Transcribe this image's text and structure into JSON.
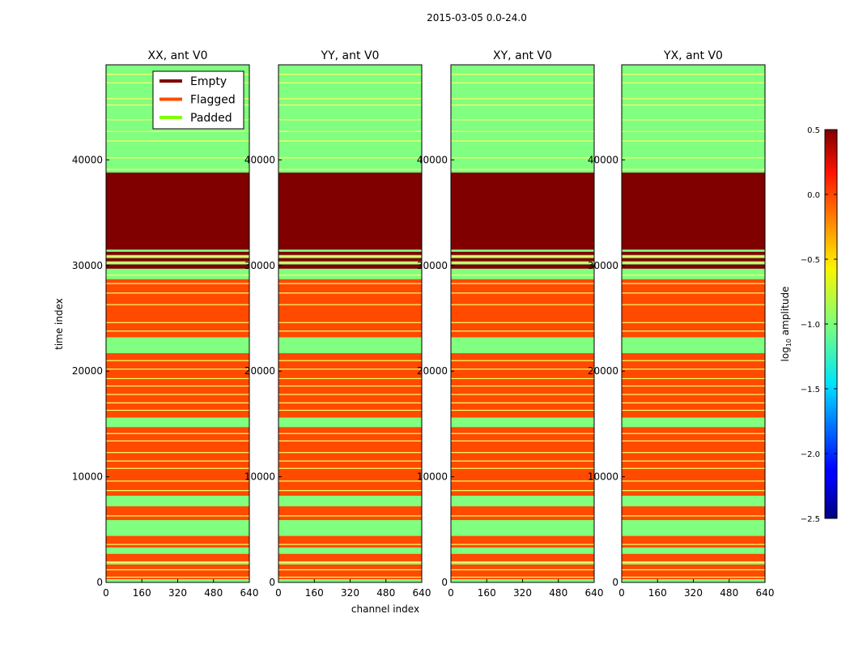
{
  "figure": {
    "suptitle": "2015-03-05 0.0-24.0",
    "ylabel": "time index",
    "xlabel": "channel index"
  },
  "colors": {
    "empty": "#800000",
    "flagged": "#ff4a00",
    "padded": "#80ff80",
    "line": "#ffff66",
    "padded_legend": "#80ff00"
  },
  "chart_data": {
    "type": "heatmap",
    "xlim": [
      0,
      640
    ],
    "ylim": [
      0,
      49000
    ],
    "xticks": [
      "0",
      "160",
      "320",
      "480",
      "640"
    ],
    "yticks": [
      "0",
      "10000",
      "20000",
      "30000",
      "40000"
    ],
    "panels": [
      {
        "title": "XX, ant V0"
      },
      {
        "title": "YY, ant V0"
      },
      {
        "title": "XY, ant V0"
      },
      {
        "title": "YX, ant V0"
      }
    ],
    "legend": {
      "location": "upper-right of first panel",
      "entries": [
        {
          "label": "Empty",
          "color_key": "empty"
        },
        {
          "label": "Flagged",
          "color_key": "flagged"
        },
        {
          "label": "Padded",
          "color_key": "padded_legend"
        }
      ]
    },
    "regions": [
      {
        "category": "flagged",
        "from": 0,
        "to": 29700
      },
      {
        "category": "padded",
        "from": 29700,
        "to": 31500
      },
      {
        "category": "empty",
        "from": 31500,
        "to": 38800
      },
      {
        "category": "padded",
        "from": 38800,
        "to": 49000
      }
    ],
    "bands": [
      {
        "category": "padded",
        "from": 0,
        "to": 300
      },
      {
        "category": "padded",
        "from": 1700,
        "to": 2000
      },
      {
        "category": "padded",
        "from": 2700,
        "to": 3300
      },
      {
        "category": "padded",
        "from": 4400,
        "to": 5900
      },
      {
        "category": "padded",
        "from": 7200,
        "to": 8200
      },
      {
        "category": "padded",
        "from": 14700,
        "to": 15600
      },
      {
        "category": "padded",
        "from": 21700,
        "to": 23200
      },
      {
        "category": "padded",
        "from": 28700,
        "to": 29700
      },
      {
        "category": "empty",
        "from": 29700,
        "to": 30100
      },
      {
        "category": "empty",
        "from": 30400,
        "to": 30700
      },
      {
        "category": "empty",
        "from": 31000,
        "to": 31300
      },
      {
        "category": "padded",
        "from": 39300,
        "to": 39700
      },
      {
        "category": "padded",
        "from": 40600,
        "to": 41000
      },
      {
        "category": "padded",
        "from": 42100,
        "to": 42400
      },
      {
        "category": "padded",
        "from": 43100,
        "to": 43300
      },
      {
        "category": "padded",
        "from": 44500,
        "to": 44700
      },
      {
        "category": "padded",
        "from": 46000,
        "to": 47000
      },
      {
        "category": "padded",
        "from": 47600,
        "to": 47800
      },
      {
        "category": "padded",
        "from": 48400,
        "to": 48600
      }
    ],
    "lines": [
      500,
      1200,
      1900,
      3600,
      6300,
      8700,
      9600,
      10800,
      11500,
      12300,
      13400,
      14100,
      16300,
      17000,
      17800,
      18600,
      19300,
      20200,
      21000,
      23800,
      24600,
      26300,
      27400,
      28300,
      29100,
      30250,
      30850,
      39100,
      40200,
      41800,
      42700,
      43800,
      45200,
      45800,
      47300,
      48100
    ],
    "colorbar": {
      "label": "log10 amplitude",
      "label_main": "log",
      "label_sub": "10",
      "label_rest": " amplitude",
      "range": [
        -2.5,
        0.5
      ],
      "ticks": [
        "0.5",
        "0.0",
        "−0.5",
        "−1.0",
        "−1.5",
        "−2.0",
        "−2.5"
      ],
      "tick_values": [
        0.5,
        0.0,
        -0.5,
        -1.0,
        -1.5,
        -2.0,
        -2.5
      ],
      "colormap": "jet"
    }
  }
}
